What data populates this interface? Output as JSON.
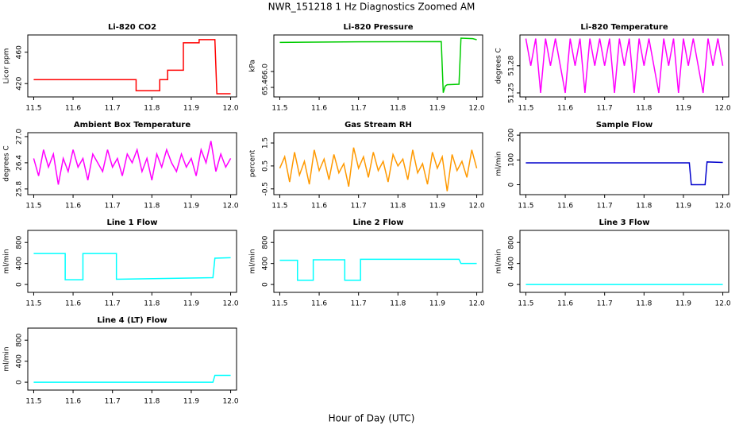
{
  "title": "NWR_151218  1 Hz Diagnostics Zoomed AM",
  "xlabel": "Hour of Day (UTC)",
  "chart_data": [
    {
      "type": "line",
      "title": "Li-820 CO2",
      "ylabel": "Licor ppm",
      "color": "#ff0000",
      "x": [
        11.5,
        11.76,
        11.76,
        11.785,
        11.82,
        11.82,
        11.84,
        11.84,
        11.88,
        11.88,
        11.92,
        11.92,
        11.96,
        11.965,
        12.0
      ],
      "values": [
        425,
        425,
        411,
        411,
        411,
        425,
        425,
        437,
        437,
        472,
        472,
        476,
        476,
        407,
        407
      ],
      "xlim": [
        11.485,
        12.015
      ],
      "xticks": [
        11.5,
        11.6,
        11.7,
        11.8,
        11.9,
        {
          "value": 12,
          "label": "12.0"
        }
      ],
      "ylim": [
        403,
        482
      ],
      "yticks": [
        420,
        460
      ]
    },
    {
      "type": "line",
      "title": "Li-820 Pressure",
      "ylabel": "kPa",
      "color": "#00cc00",
      "x": [
        11.5,
        11.7,
        11.91,
        11.915,
        11.92,
        11.925,
        11.955,
        11.96,
        11.99,
        12.0
      ],
      "values": [
        67.1,
        67.12,
        67.13,
        65.2,
        65.45,
        65.5,
        65.52,
        67.26,
        67.24,
        67.2
      ],
      "xlim": [
        11.485,
        12.015
      ],
      "xticks": [
        11.5,
        11.6,
        11.7,
        11.8,
        11.9,
        {
          "value": 12,
          "label": "12.0"
        }
      ],
      "ylim": [
        65.04,
        67.38
      ],
      "yticks": [
        65.4,
        {
          "value": 66,
          "label": "66.0"
        }
      ]
    },
    {
      "type": "line",
      "title": "Li-820 Temperature",
      "ylabel": "degrees C",
      "color": "#ff00ff",
      "x": [
        11.5,
        11.5125,
        11.525,
        11.5375,
        11.55,
        11.5625,
        11.575,
        11.5875,
        11.6,
        11.6125,
        11.625,
        11.6375,
        11.65,
        11.6625,
        11.675,
        11.6875,
        11.7,
        11.7125,
        11.725,
        11.7375,
        11.75,
        11.7625,
        11.775,
        11.7875,
        11.8,
        11.8125,
        11.825,
        11.8375,
        11.85,
        11.8625,
        11.875,
        11.8875,
        11.9,
        11.9125,
        11.925,
        11.9375,
        11.95,
        11.9625,
        11.975,
        11.9875,
        12.0
      ],
      "values": [
        51.31,
        51.28,
        51.31,
        51.25,
        51.31,
        51.28,
        51.31,
        51.28,
        51.25,
        51.31,
        51.28,
        51.31,
        51.25,
        51.31,
        51.28,
        51.31,
        51.28,
        51.31,
        51.25,
        51.31,
        51.28,
        51.31,
        51.25,
        51.31,
        51.28,
        51.31,
        51.28,
        51.25,
        51.31,
        51.28,
        51.31,
        51.25,
        51.31,
        51.28,
        51.31,
        51.28,
        51.25,
        51.31,
        51.28,
        51.31,
        51.28
      ],
      "xlim": [
        11.485,
        12.015
      ],
      "xticks": [
        11.5,
        11.6,
        11.7,
        11.8,
        11.9,
        {
          "value": 12,
          "label": "12.0"
        }
      ],
      "ylim": [
        51.2456,
        51.314
      ],
      "yticks": [
        51.25,
        51.28
      ]
    },
    {
      "type": "line",
      "title": "Ambient Box Temperature",
      "ylabel": "degrees C",
      "color": "#ff00ff",
      "x": [
        11.5,
        11.5125,
        11.525,
        11.5375,
        11.55,
        11.5625,
        11.575,
        11.5875,
        11.6,
        11.6125,
        11.625,
        11.6375,
        11.65,
        11.6625,
        11.675,
        11.6875,
        11.7,
        11.7125,
        11.725,
        11.7375,
        11.75,
        11.7625,
        11.775,
        11.7875,
        11.8,
        11.8125,
        11.825,
        11.8375,
        11.85,
        11.8625,
        11.875,
        11.8875,
        11.9,
        11.9125,
        11.925,
        11.9375,
        11.95,
        11.9625,
        11.975,
        11.9875,
        12.0
      ],
      "values": [
        26.5,
        26.1,
        26.7,
        26.3,
        26.6,
        25.9,
        26.5,
        26.2,
        26.7,
        26.3,
        26.5,
        26.0,
        26.6,
        26.4,
        26.2,
        26.7,
        26.3,
        26.5,
        26.1,
        26.6,
        26.4,
        26.7,
        26.2,
        26.5,
        26.0,
        26.6,
        26.3,
        26.7,
        26.4,
        26.2,
        26.6,
        26.3,
        26.5,
        26.1,
        26.7,
        26.4,
        26.9,
        26.2,
        26.6,
        26.3,
        26.5
      ],
      "xlim": [
        11.485,
        12.015
      ],
      "xticks": [
        11.5,
        11.6,
        11.7,
        11.8,
        11.9,
        {
          "value": 12,
          "label": "12.0"
        }
      ],
      "ylim": [
        25.67,
        27.09
      ],
      "yticks": [
        25.8,
        26.4,
        {
          "value": 27,
          "label": "27.0"
        }
      ]
    },
    {
      "type": "line",
      "title": "Gas Stream RH",
      "ylabel": "percent",
      "color": "#ff9900",
      "x": [
        11.5,
        11.5125,
        11.525,
        11.5375,
        11.55,
        11.5625,
        11.575,
        11.5875,
        11.6,
        11.6125,
        11.625,
        11.6375,
        11.65,
        11.6625,
        11.675,
        11.6875,
        11.7,
        11.7125,
        11.725,
        11.7375,
        11.75,
        11.7625,
        11.775,
        11.7875,
        11.8,
        11.8125,
        11.825,
        11.8375,
        11.85,
        11.8625,
        11.875,
        11.8875,
        11.9,
        11.9125,
        11.925,
        11.9375,
        11.95,
        11.9625,
        11.975,
        11.9875,
        12.0
      ],
      "values": [
        0.4,
        0.9,
        -0.2,
        1.1,
        0.1,
        0.7,
        -0.3,
        1.2,
        0.3,
        0.8,
        -0.1,
        1.0,
        0.2,
        0.6,
        -0.4,
        1.3,
        0.4,
        0.9,
        0.0,
        1.1,
        0.3,
        0.7,
        -0.2,
        1.0,
        0.5,
        0.8,
        -0.1,
        1.2,
        0.2,
        0.6,
        -0.3,
        1.1,
        0.4,
        0.9,
        -0.6,
        1.0,
        0.3,
        0.7,
        0.0,
        1.2,
        0.4
      ],
      "xlim": [
        11.485,
        12.015
      ],
      "xticks": [
        11.5,
        11.6,
        11.7,
        11.8,
        11.9,
        {
          "value": 12,
          "label": "12.0"
        }
      ],
      "ylim": [
        -0.75,
        1.95
      ],
      "yticks": [
        -0.5,
        0.5,
        1.5
      ]
    },
    {
      "type": "line",
      "title": "Sample Flow",
      "ylabel": "ml/min",
      "color": "#0000cc",
      "x": [
        11.5,
        11.915,
        11.92,
        11.955,
        11.96,
        12.0
      ],
      "values": [
        88,
        88,
        0,
        0,
        92,
        90
      ],
      "xlim": [
        11.485,
        12.015
      ],
      "xticks": [
        11.5,
        11.6,
        11.7,
        11.8,
        11.9,
        {
          "value": 12,
          "label": "12.0"
        }
      ],
      "ylim": [
        -40,
        210
      ],
      "yticks": [
        0,
        100,
        200
      ]
    },
    {
      "type": "line",
      "title": "Line 1 Flow",
      "ylabel": "ml/min",
      "color": "#00ffff",
      "x": [
        11.5,
        11.58,
        11.58,
        11.625,
        11.625,
        11.71,
        11.71,
        11.955,
        11.96,
        12.0
      ],
      "values": [
        590,
        590,
        90,
        90,
        590,
        590,
        100,
        130,
        500,
        510
      ],
      "xlim": [
        11.485,
        12.015
      ],
      "xticks": [
        11.5,
        11.6,
        11.7,
        11.8,
        11.9,
        {
          "value": 12,
          "label": "12.0"
        }
      ],
      "ylim": [
        -150,
        1030
      ],
      "yticks": [
        0,
        400,
        800
      ]
    },
    {
      "type": "line",
      "title": "Line 2 Flow",
      "ylabel": "ml/min",
      "color": "#00ffff",
      "x": [
        11.5,
        11.545,
        11.545,
        11.585,
        11.585,
        11.665,
        11.665,
        11.705,
        11.705,
        11.955,
        11.96,
        12.0
      ],
      "values": [
        460,
        460,
        80,
        80,
        470,
        470,
        80,
        80,
        480,
        480,
        400,
        400
      ],
      "xlim": [
        11.485,
        12.015
      ],
      "xticks": [
        11.5,
        11.6,
        11.7,
        11.8,
        11.9,
        {
          "value": 12,
          "label": "12.0"
        }
      ],
      "ylim": [
        -150,
        1030
      ],
      "yticks": [
        0,
        400,
        800
      ]
    },
    {
      "type": "line",
      "title": "Line 3 Flow",
      "ylabel": "ml/min",
      "color": "#00ffff",
      "x": [
        11.5,
        12.0
      ],
      "values": [
        0,
        0
      ],
      "xlim": [
        11.485,
        12.015
      ],
      "xticks": [
        11.5,
        11.6,
        11.7,
        11.8,
        11.9,
        {
          "value": 12,
          "label": "12.0"
        }
      ],
      "ylim": [
        -150,
        1030
      ],
      "yticks": [
        0,
        400,
        800
      ]
    },
    {
      "type": "line",
      "title": "Line 4 (LT) Flow",
      "ylabel": "ml/min",
      "color": "#00ffff",
      "x": [
        11.5,
        11.955,
        11.96,
        12.0
      ],
      "values": [
        0,
        0,
        130,
        130
      ],
      "xlim": [
        11.485,
        12.015
      ],
      "xticks": [
        11.5,
        11.6,
        11.7,
        11.8,
        11.9,
        {
          "value": 12,
          "label": "12.0"
        }
      ],
      "ylim": [
        -150,
        1030
      ],
      "yticks": [
        0,
        400,
        800
      ]
    }
  ]
}
